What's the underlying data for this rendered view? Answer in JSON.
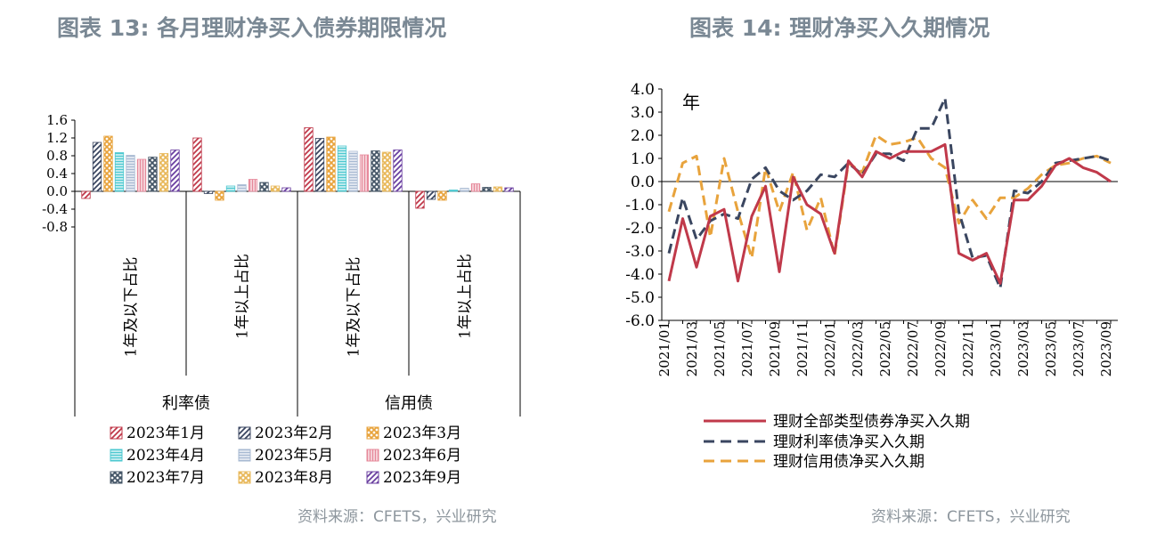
{
  "left": {
    "title": "图表 13: 各月理财净买入债券期限情况",
    "source": "资料来源：CFETS，兴业研究"
  },
  "right": {
    "title": "图表 14: 理财净买入久期情况",
    "source": "资料来源：CFETS，兴业研究"
  },
  "chart_data": [
    {
      "type": "bar",
      "title": "图表 13: 各月理财净买入债券期限情况",
      "groups": [
        {
          "label": "利率债",
          "categories": [
            "1年及以下占比",
            "1年以上占比"
          ]
        },
        {
          "label": "信用债",
          "categories": [
            "1年及以下占比",
            "1年以上占比"
          ]
        }
      ],
      "categories": [
        "利率债 1年及以下占比",
        "利率债 1年以上占比",
        "信用债 1年及以下占比",
        "信用债 1年以上占比"
      ],
      "ylim": [
        -0.8,
        1.6
      ],
      "yticks": [
        "1.6",
        "1.2",
        "0.8",
        "0.4",
        "0.0",
        "-0.4",
        "-0.8"
      ],
      "legend_position": "bottom",
      "series": [
        {
          "name": "2023年1月",
          "color": "#c0394a",
          "pattern": "diag",
          "values": [
            -0.16,
            1.2,
            1.43,
            -0.38
          ]
        },
        {
          "name": "2023年2月",
          "color": "#3a4660",
          "pattern": "diag",
          "values": [
            1.1,
            -0.05,
            1.19,
            -0.18
          ]
        },
        {
          "name": "2023年3月",
          "color": "#e8a33c",
          "pattern": "diamond",
          "values": [
            1.24,
            -0.2,
            1.22,
            -0.2
          ]
        },
        {
          "name": "2023年4月",
          "color": "#4cc8d0",
          "pattern": "hlines",
          "values": [
            0.87,
            0.12,
            1.02,
            0.03
          ]
        },
        {
          "name": "2023年5月",
          "color": "#a7b9d2",
          "pattern": "hlines",
          "values": [
            0.81,
            0.15,
            0.9,
            0.07
          ]
        },
        {
          "name": "2023年6月",
          "color": "#e6889a",
          "pattern": "vlines",
          "values": [
            0.72,
            0.27,
            0.82,
            0.17
          ]
        },
        {
          "name": "2023年7月",
          "color": "#445566",
          "pattern": "cross",
          "values": [
            0.77,
            0.2,
            0.91,
            0.09
          ]
        },
        {
          "name": "2023年8月",
          "color": "#e8b85a",
          "pattern": "diamond",
          "values": [
            0.85,
            0.12,
            0.88,
            0.1
          ]
        },
        {
          "name": "2023年9月",
          "color": "#6a3fa0",
          "pattern": "diag",
          "values": [
            0.93,
            0.08,
            0.93,
            0.08
          ]
        }
      ]
    },
    {
      "type": "line",
      "title": "图表 14: 理财净买入久期情况",
      "unit_label": "年",
      "ylim": [
        -6.0,
        4.0
      ],
      "yticks": [
        "4.0",
        "3.0",
        "2.0",
        "1.0",
        "0.0",
        "-1.0",
        "-2.0",
        "-3.0",
        "-4.0",
        "-5.0",
        "-6.0"
      ],
      "x": [
        "2021/01",
        "2021/02",
        "2021/03",
        "2021/04",
        "2021/05",
        "2021/06",
        "2021/07",
        "2021/08",
        "2021/09",
        "2021/10",
        "2021/11",
        "2021/12",
        "2022/01",
        "2022/02",
        "2022/03",
        "2022/04",
        "2022/05",
        "2022/06",
        "2022/07",
        "2022/08",
        "2022/09",
        "2022/10",
        "2022/11",
        "2022/12",
        "2023/01",
        "2023/02",
        "2023/03",
        "2023/04",
        "2023/05",
        "2023/06",
        "2023/07",
        "2023/08",
        "2023/09"
      ],
      "xticks": [
        "2021/01",
        "2021/03",
        "2021/05",
        "2021/07",
        "2021/09",
        "2021/11",
        "2022/01",
        "2022/03",
        "2022/05",
        "2022/07",
        "2022/09",
        "2022/11",
        "2023/01",
        "2023/03",
        "2023/05",
        "2023/07",
        "2023/09"
      ],
      "legend_position": "bottom",
      "series": [
        {
          "name": "理财全部类型债券净买入久期",
          "color": "#c0394a",
          "dash": "solid",
          "values": [
            -4.3,
            -1.6,
            -3.7,
            -1.5,
            -1.2,
            -4.3,
            -1.5,
            -0.2,
            -3.9,
            0.2,
            -1.0,
            -1.4,
            -3.1,
            0.9,
            0.2,
            1.3,
            1.0,
            1.3,
            1.3,
            1.3,
            1.6,
            -3.1,
            -3.4,
            -3.1,
            -4.4,
            -0.8,
            -0.8,
            -0.2,
            0.7,
            1.0,
            0.6,
            0.4,
            0.0
          ]
        },
        {
          "name": "理财利率债净买入久期",
          "color": "#3a4660",
          "dash": "dash",
          "values": [
            -3.1,
            -0.7,
            -2.5,
            -1.7,
            -1.4,
            -1.6,
            0.1,
            0.6,
            -0.4,
            -0.8,
            -0.4,
            0.3,
            0.2,
            0.8,
            0.3,
            1.2,
            1.2,
            0.9,
            2.3,
            2.3,
            3.6,
            -1.3,
            -3.3,
            -3.2,
            -4.6,
            -0.4,
            -0.5,
            0.0,
            0.8,
            0.9,
            1.0,
            1.1,
            0.9
          ]
        },
        {
          "name": "理财信用债净买入久期",
          "color": "#e8a33c",
          "dash": "dash",
          "values": [
            -1.3,
            0.8,
            1.1,
            -2.4,
            1.0,
            -1.3,
            -3.3,
            0.6,
            -1.3,
            0.4,
            -2.1,
            -0.7,
            -3.2,
            0.8,
            0.4,
            2.0,
            1.6,
            1.7,
            1.9,
            1.0,
            0.6,
            -1.8,
            -0.8,
            -1.6,
            -0.7,
            -0.7,
            -0.3,
            0.3,
            0.7,
            0.8,
            1.0,
            1.1,
            0.8
          ]
        }
      ]
    }
  ]
}
